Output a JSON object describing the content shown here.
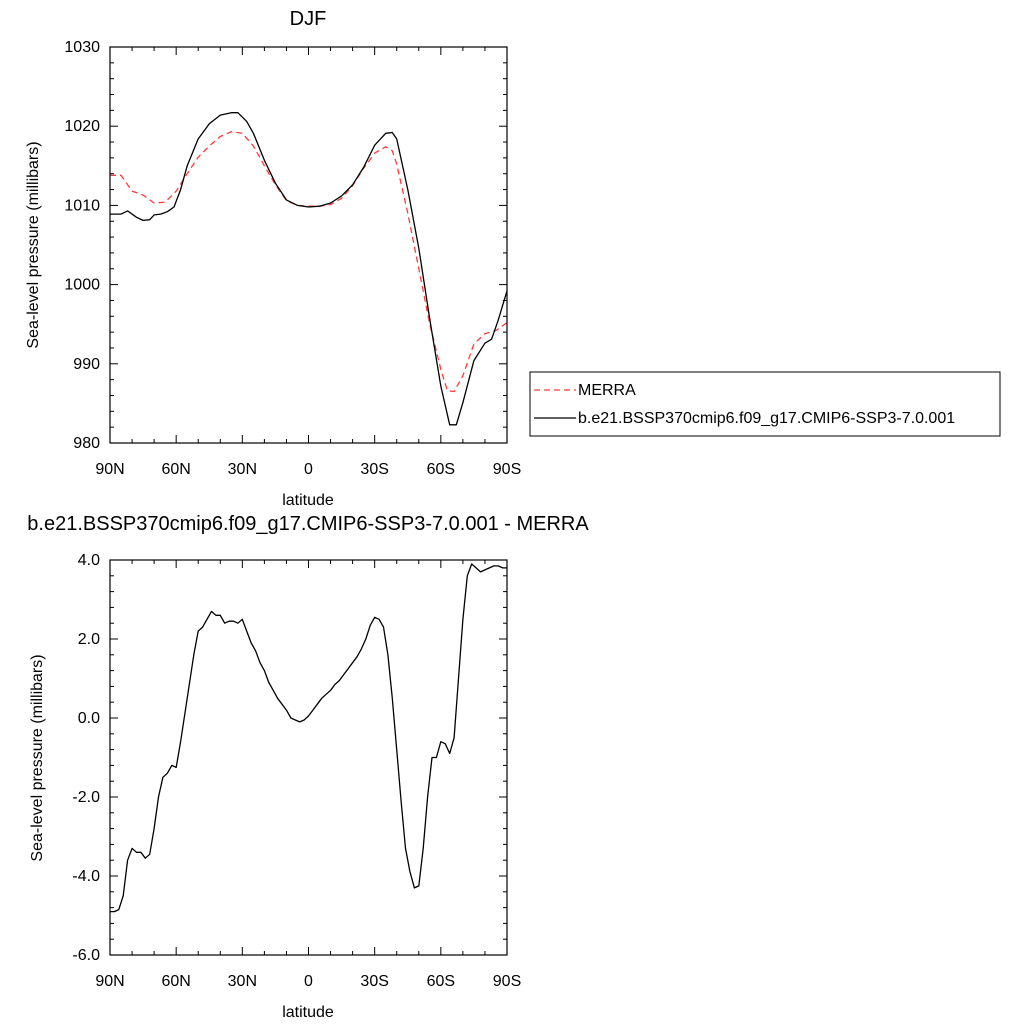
{
  "chart_data": [
    {
      "type": "line",
      "title": "DJF",
      "xlabel": "latitude",
      "ylabel": "Sea-level pressure (millibars)",
      "xlim": [
        90,
        -90
      ],
      "ylim": [
        980,
        1030
      ],
      "x_ticks": [
        90,
        60,
        30,
        0,
        -30,
        -60,
        -90
      ],
      "x_tick_labels": [
        "90N",
        "60N",
        "30N",
        "0",
        "30S",
        "60S",
        "90S"
      ],
      "y_ticks": [
        980,
        990,
        1000,
        1010,
        1020,
        1030
      ],
      "y_tick_labels": [
        "980",
        "990",
        "1000",
        "1010",
        "1020",
        "1030"
      ],
      "grid": false,
      "legend_position": "right",
      "series": [
        {
          "name": "MERRA",
          "color": "#ff3b3b",
          "dash": "dashed",
          "x": [
            90,
            85,
            80,
            75,
            70,
            65,
            60,
            55,
            50,
            45,
            40,
            35,
            30,
            25,
            20,
            15,
            10,
            5,
            0,
            -5,
            -10,
            -15,
            -20,
            -25,
            -30,
            -35,
            -38,
            -40,
            -45,
            -50,
            -55,
            -60,
            -63,
            -66,
            -70,
            -75,
            -80,
            -85,
            -90
          ],
          "values": [
            1013.8,
            1013.8,
            1011.8,
            1011.3,
            1010.3,
            1010.4,
            1011.8,
            1014.0,
            1016.1,
            1017.5,
            1018.7,
            1019.3,
            1019.1,
            1017.5,
            1015.0,
            1012.6,
            1010.6,
            1010.0,
            1009.9,
            1009.9,
            1010.1,
            1010.9,
            1012.5,
            1014.7,
            1016.6,
            1017.4,
            1016.9,
            1015.2,
            1009.0,
            1002.0,
            995.0,
            989.3,
            986.6,
            986.5,
            988.5,
            992.5,
            993.8,
            994.2,
            995.2
          ]
        },
        {
          "name": "b.e21.BSSP370cmip6.f09_g17.CMIP6-SSP3-7.0.001",
          "color": "#000000",
          "dash": "solid",
          "x": [
            90,
            85,
            82,
            78,
            75,
            72,
            70,
            67,
            64,
            61,
            58,
            55,
            50,
            45,
            40,
            35,
            32,
            28,
            25,
            20,
            15,
            10,
            5,
            0,
            -5,
            -10,
            -15,
            -20,
            -25,
            -30,
            -35,
            -38,
            -40,
            -45,
            -50,
            -55,
            -60,
            -64,
            -67,
            -70,
            -75,
            -80,
            -83,
            -86,
            -90
          ],
          "values": [
            1008.9,
            1008.9,
            1009.3,
            1008.5,
            1008.1,
            1008.2,
            1008.8,
            1008.9,
            1009.2,
            1009.8,
            1012.0,
            1015.0,
            1018.4,
            1020.3,
            1021.4,
            1021.7,
            1021.7,
            1020.6,
            1019.1,
            1015.7,
            1012.8,
            1010.7,
            1010.0,
            1009.8,
            1009.9,
            1010.3,
            1011.2,
            1012.6,
            1014.8,
            1017.6,
            1019.1,
            1019.2,
            1018.4,
            1012.0,
            1004.6,
            995.6,
            987.2,
            982.3,
            982.3,
            985.1,
            990.4,
            992.6,
            993.1,
            995.5,
            999.2
          ]
        }
      ]
    },
    {
      "type": "line",
      "title": "b.e21.BSSP370cmip6.f09_g17.CMIP6-SSP3-7.0.001 - MERRA",
      "xlabel": "latitude",
      "ylabel": "Sea-level pressure (millibars)",
      "xlim": [
        90,
        -90
      ],
      "ylim": [
        -6,
        4
      ],
      "x_ticks": [
        90,
        60,
        30,
        0,
        -30,
        -60,
        -90
      ],
      "x_tick_labels": [
        "90N",
        "60N",
        "30N",
        "0",
        "30S",
        "60S",
        "90S"
      ],
      "y_ticks": [
        -6,
        -4,
        -2,
        0,
        2,
        4
      ],
      "y_tick_labels": [
        "-6.0",
        "-4.0",
        "-2.0",
        "0.0",
        "2.0",
        "4.0"
      ],
      "grid": false,
      "series": [
        {
          "color": "#000000",
          "dash": "solid",
          "x": [
            90,
            88,
            86,
            84,
            82,
            80,
            78,
            76,
            74,
            72,
            70,
            68,
            66,
            64,
            62,
            60,
            58,
            55,
            52,
            50,
            48,
            46,
            44,
            42,
            40,
            38,
            36,
            34,
            32,
            30,
            28,
            26,
            24,
            22,
            20,
            18,
            16,
            14,
            12,
            10,
            8,
            6,
            4,
            2,
            0,
            -2,
            -4,
            -6,
            -8,
            -10,
            -12,
            -14,
            -16,
            -18,
            -20,
            -22,
            -24,
            -26,
            -28,
            -30,
            -32,
            -34,
            -36,
            -38,
            -40,
            -42,
            -44,
            -46,
            -48,
            -50,
            -52,
            -54,
            -56,
            -58,
            -60,
            -62,
            -64,
            -66,
            -68,
            -70,
            -72,
            -74,
            -76,
            -78,
            -80,
            -82,
            -84,
            -86,
            -88,
            -90
          ],
          "values": [
            -4.9,
            -4.9,
            -4.85,
            -4.5,
            -3.6,
            -3.3,
            -3.4,
            -3.4,
            -3.55,
            -3.45,
            -2.8,
            -2.0,
            -1.5,
            -1.4,
            -1.2,
            -1.25,
            -0.6,
            0.5,
            1.6,
            2.2,
            2.3,
            2.5,
            2.7,
            2.6,
            2.6,
            2.4,
            2.45,
            2.45,
            2.4,
            2.5,
            2.2,
            1.9,
            1.7,
            1.4,
            1.2,
            0.9,
            0.7,
            0.5,
            0.35,
            0.2,
            0.0,
            -0.05,
            -0.1,
            -0.05,
            0.05,
            0.2,
            0.35,
            0.5,
            0.6,
            0.7,
            0.85,
            0.95,
            1.1,
            1.25,
            1.4,
            1.55,
            1.75,
            2.0,
            2.35,
            2.55,
            2.5,
            2.3,
            1.6,
            0.5,
            -0.8,
            -2.1,
            -3.3,
            -3.9,
            -4.3,
            -4.25,
            -3.3,
            -2.0,
            -1.0,
            -1.0,
            -0.6,
            -0.65,
            -0.9,
            -0.5,
            1.0,
            2.5,
            3.6,
            3.9,
            3.8,
            3.7,
            3.75,
            3.8,
            3.85,
            3.85,
            3.8,
            3.8
          ]
        }
      ]
    }
  ]
}
